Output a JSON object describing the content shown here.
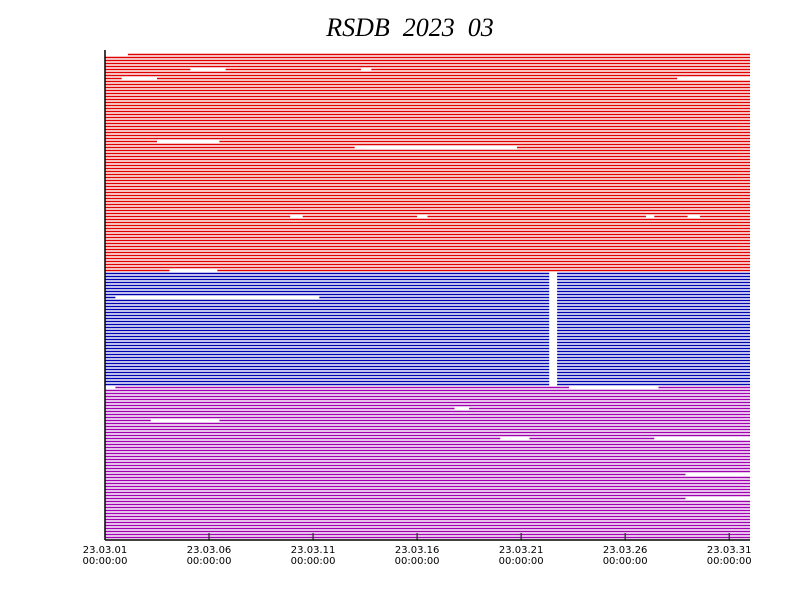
{
  "chart_data": {
    "type": "availability",
    "title": "RSDB  2023  03",
    "xlim": [
      0,
      31
    ],
    "xticks": [
      {
        "value": 0,
        "label": "23.03.01"
      },
      {
        "value": 5,
        "label": "23.03.06"
      },
      {
        "value": 10,
        "label": "23.03.11"
      },
      {
        "value": 15,
        "label": "23.03.16"
      },
      {
        "value": 20,
        "label": "23.03.21"
      },
      {
        "value": 25,
        "label": "23.03.26"
      },
      {
        "value": 30,
        "label": "23.03.31"
      }
    ],
    "xtick_sublabels": [
      "00:00:00",
      "00:00:00",
      "00:00:00",
      "00:00:00",
      "00:00:00",
      "00:00:00",
      "00:00:00"
    ],
    "groups": [
      {
        "color": "#e00000",
        "rows": 73,
        "group_gaps": [],
        "gaps": [
          {
            "row": 0,
            "start": 0,
            "end": 1.1
          },
          {
            "row": 5,
            "start": 4.1,
            "end": 5.8
          },
          {
            "row": 5,
            "start": 12.3,
            "end": 12.8
          },
          {
            "row": 8,
            "start": 0.8,
            "end": 2.5
          },
          {
            "row": 8,
            "start": 27.5,
            "end": 31
          },
          {
            "row": 29,
            "start": 2.5,
            "end": 5.5
          },
          {
            "row": 31,
            "start": 12,
            "end": 19.8
          },
          {
            "row": 54,
            "start": 8.9,
            "end": 9.5
          },
          {
            "row": 54,
            "start": 15,
            "end": 15.5
          },
          {
            "row": 54,
            "start": 26,
            "end": 26.4
          },
          {
            "row": 54,
            "start": 28,
            "end": 28.6
          },
          {
            "row": 72,
            "start": 3.1,
            "end": 5.4
          }
        ]
      },
      {
        "color": "#0000b0",
        "rows": 38,
        "group_gaps": [
          [
            21.35,
            21.73
          ]
        ],
        "gaps": [
          {
            "row": 8,
            "start": 0.5,
            "end": 10.3
          }
        ]
      },
      {
        "color": "#a000b0",
        "rows": 51,
        "group_gaps": [],
        "gaps": [
          {
            "row": 0,
            "start": 0,
            "end": 0.5
          },
          {
            "row": 0,
            "start": 22.3,
            "end": 26.6
          },
          {
            "row": 7,
            "start": 16.8,
            "end": 17.5
          },
          {
            "row": 11,
            "start": 2.2,
            "end": 5.5
          },
          {
            "row": 17,
            "start": 19,
            "end": 20.4
          },
          {
            "row": 17,
            "start": 26.4,
            "end": 31
          },
          {
            "row": 29,
            "start": 27.9,
            "end": 31
          },
          {
            "row": 37,
            "start": 27.9,
            "end": 31
          }
        ]
      }
    ]
  }
}
